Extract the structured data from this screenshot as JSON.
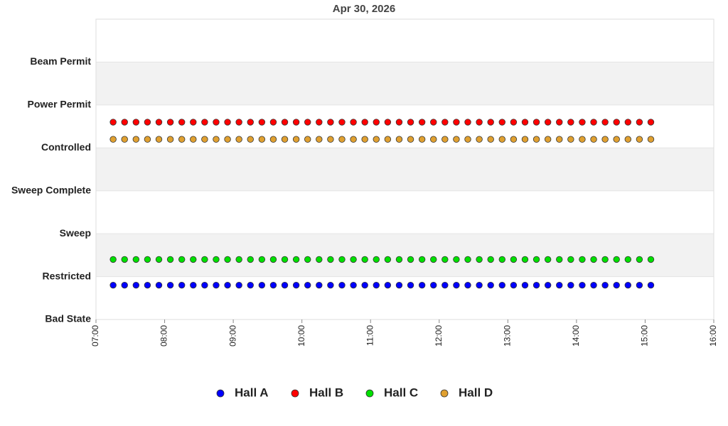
{
  "chart_data": {
    "type": "scatter",
    "title": "Apr 30, 2026",
    "x": [
      435,
      445,
      455,
      465,
      475,
      485,
      495,
      505,
      515,
      525,
      535,
      545,
      555,
      565,
      575,
      585,
      595,
      605,
      615,
      625,
      635,
      645,
      655,
      665,
      675,
      685,
      695,
      705,
      715,
      725,
      735,
      745,
      755,
      765,
      775,
      785,
      795,
      805,
      815,
      825,
      835,
      845,
      855,
      865,
      875,
      885,
      895,
      905
    ],
    "series": [
      {
        "name": "Hall A",
        "color": "#0000ff",
        "values": [
          0.8,
          0.8,
          0.8,
          0.8,
          0.8,
          0.8,
          0.8,
          0.8,
          0.8,
          0.8,
          0.8,
          0.8,
          0.8,
          0.8,
          0.8,
          0.8,
          0.8,
          0.8,
          0.8,
          0.8,
          0.8,
          0.8,
          0.8,
          0.8,
          0.8,
          0.8,
          0.8,
          0.8,
          0.8,
          0.8,
          0.8,
          0.8,
          0.8,
          0.8,
          0.8,
          0.8,
          0.8,
          0.8,
          0.8,
          0.8,
          0.8,
          0.8,
          0.8,
          0.8,
          0.8,
          0.8,
          0.8,
          0.8
        ]
      },
      {
        "name": "Hall B",
        "color": "#ff0000",
        "values": [
          4.6,
          4.6,
          4.6,
          4.6,
          4.6,
          4.6,
          4.6,
          4.6,
          4.6,
          4.6,
          4.6,
          4.6,
          4.6,
          4.6,
          4.6,
          4.6,
          4.6,
          4.6,
          4.6,
          4.6,
          4.6,
          4.6,
          4.6,
          4.6,
          4.6,
          4.6,
          4.6,
          4.6,
          4.6,
          4.6,
          4.6,
          4.6,
          4.6,
          4.6,
          4.6,
          4.6,
          4.6,
          4.6,
          4.6,
          4.6,
          4.6,
          4.6,
          4.6,
          4.6,
          4.6,
          4.6,
          4.6,
          4.6
        ]
      },
      {
        "name": "Hall C",
        "color": "#00e000",
        "values": [
          1.4,
          1.4,
          1.4,
          1.4,
          1.4,
          1.4,
          1.4,
          1.4,
          1.4,
          1.4,
          1.4,
          1.4,
          1.4,
          1.4,
          1.4,
          1.4,
          1.4,
          1.4,
          1.4,
          1.4,
          1.4,
          1.4,
          1.4,
          1.4,
          1.4,
          1.4,
          1.4,
          1.4,
          1.4,
          1.4,
          1.4,
          1.4,
          1.4,
          1.4,
          1.4,
          1.4,
          1.4,
          1.4,
          1.4,
          1.4,
          1.4,
          1.4,
          1.4,
          1.4,
          1.4,
          1.4,
          1.4,
          1.4
        ]
      },
      {
        "name": "Hall D",
        "color": "#e0a030",
        "values": [
          4.2,
          4.2,
          4.2,
          4.2,
          4.2,
          4.2,
          4.2,
          4.2,
          4.2,
          4.2,
          4.2,
          4.2,
          4.2,
          4.2,
          4.2,
          4.2,
          4.2,
          4.2,
          4.2,
          4.2,
          4.2,
          4.2,
          4.2,
          4.2,
          4.2,
          4.2,
          4.2,
          4.2,
          4.2,
          4.2,
          4.2,
          4.2,
          4.2,
          4.2,
          4.2,
          4.2,
          4.2,
          4.2,
          4.2,
          4.2,
          4.2,
          4.2,
          4.2,
          4.2,
          4.2,
          4.2,
          4.2,
          4.2
        ]
      }
    ],
    "xlim": [
      420,
      960
    ],
    "xticks": [
      {
        "value": 420,
        "label": "07:00"
      },
      {
        "value": 480,
        "label": "08:00"
      },
      {
        "value": 540,
        "label": "09:00"
      },
      {
        "value": 600,
        "label": "10:00"
      },
      {
        "value": 660,
        "label": "11:00"
      },
      {
        "value": 720,
        "label": "12:00"
      },
      {
        "value": 780,
        "label": "13:00"
      },
      {
        "value": 840,
        "label": "14:00"
      },
      {
        "value": 900,
        "label": "15:00"
      },
      {
        "value": 960,
        "label": "16:00"
      }
    ],
    "ylim": [
      0,
      7
    ],
    "yticks": [
      {
        "value": 0,
        "label": "Bad State"
      },
      {
        "value": 1,
        "label": "Restricted"
      },
      {
        "value": 2,
        "label": "Sweep"
      },
      {
        "value": 3,
        "label": "Sweep Complete"
      },
      {
        "value": 4,
        "label": "Controlled"
      },
      {
        "value": 5,
        "label": "Power Permit"
      },
      {
        "value": 6,
        "label": "Beam Permit"
      }
    ],
    "band_color": "#f2f2f2",
    "legend": "bottom"
  }
}
